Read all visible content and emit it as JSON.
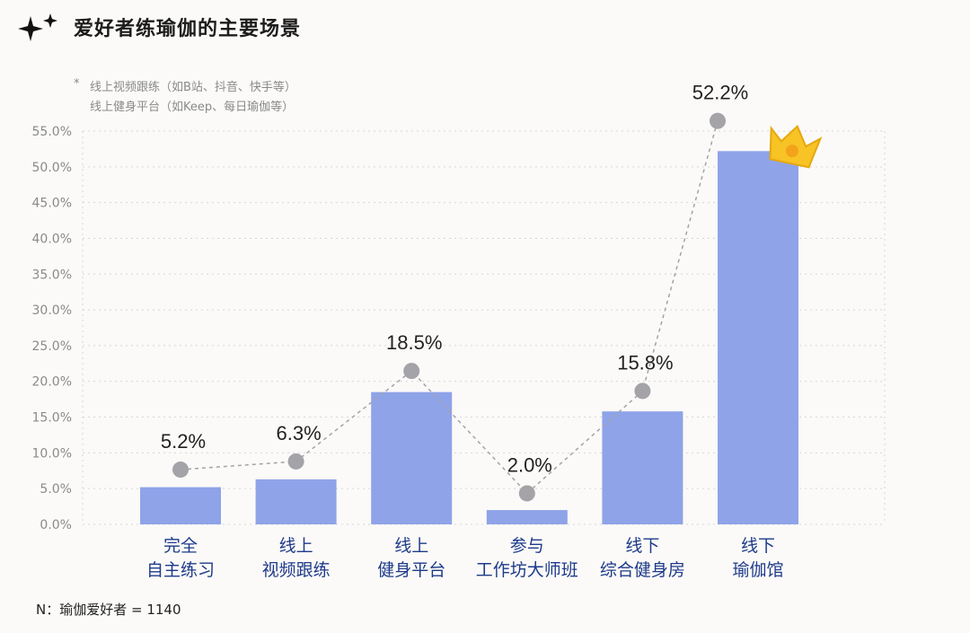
{
  "title": "爱好者练瑜伽的主要场景",
  "notes": {
    "star": "*",
    "line1": "线上视频跟练（如B站、抖音、快手等）",
    "line2": "线上健身平台（如Keep、每日瑜伽等）"
  },
  "footer": "N：瑜伽爱好者 = 1140",
  "colors": {
    "bar": "#8fa3e8",
    "marker": "#a3a3a8",
    "line": "#a3a3a8",
    "crown": "#f7c325"
  },
  "icons": {
    "sparkle": "sparkle-icon",
    "crown": "crown-icon"
  },
  "chart_data": {
    "type": "bar",
    "categories": [
      [
        "完全",
        "自主练习"
      ],
      [
        "线上",
        "视频跟练"
      ],
      [
        "线上",
        "健身平台"
      ],
      [
        "参与",
        "工作坊大师班"
      ],
      [
        "线下",
        "综合健身房"
      ],
      [
        "线下",
        "瑜伽馆"
      ]
    ],
    "values": [
      5.2,
      6.3,
      18.5,
      2.0,
      15.8,
      52.2
    ],
    "data_labels": [
      "5.2%",
      "6.3%",
      "18.5%",
      "2.0%",
      "15.8%",
      "52.2%"
    ],
    "y_ticks": [
      "0.0%",
      "5.0%",
      "10.0%",
      "15.0%",
      "20.0%",
      "25.0%",
      "30.0%",
      "35.0%",
      "40.0%",
      "45.0%",
      "50.0%",
      "55.0%"
    ],
    "ylim": [
      0,
      55
    ],
    "grid": true,
    "highlight_max": true,
    "xlabel": "",
    "ylabel": ""
  }
}
